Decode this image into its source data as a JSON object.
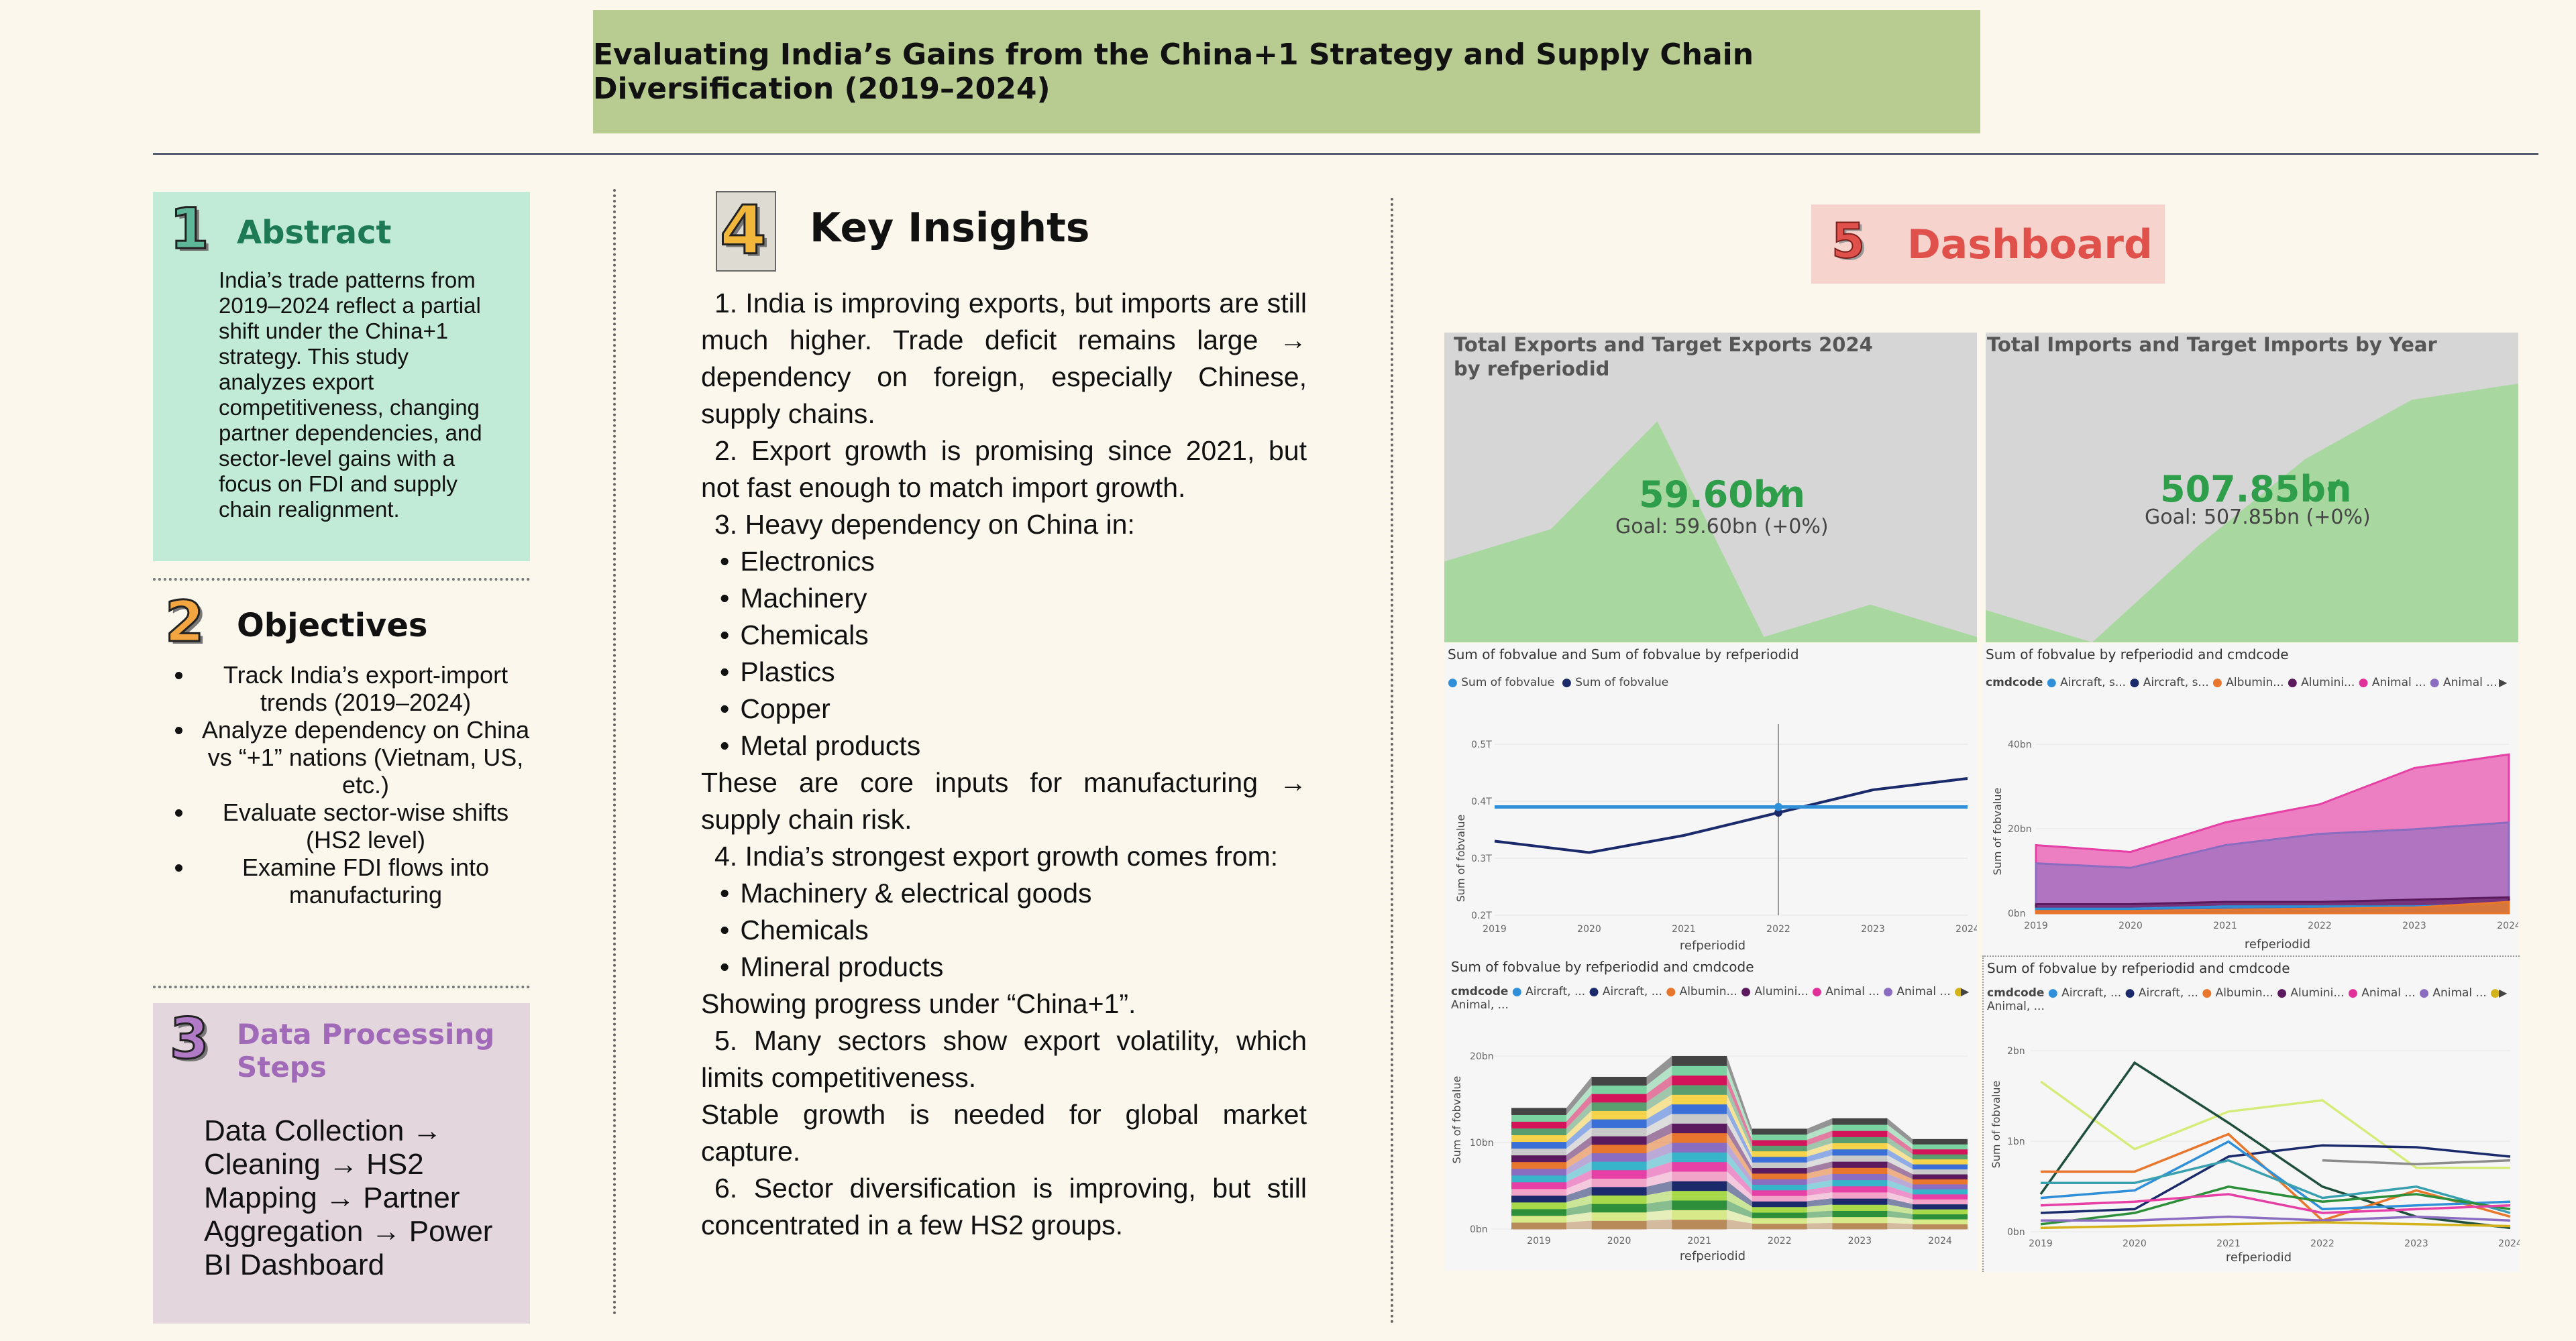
{
  "title": "Evaluating India’s Gains from the China+1 Strategy and Supply Chain Diversification (2019–2024)",
  "abstract": {
    "number": "1",
    "heading": "Abstract",
    "text": "India’s trade patterns from 2019–2024 reflect a partial shift under the China+1 strategy. This study analyzes export competitiveness, changing partner dependencies, and sector-level gains with a focus on FDI and supply chain realignment."
  },
  "objectives": {
    "number": "2",
    "heading": "Objectives",
    "items": [
      "Track India’s export-import trends (2019–2024)",
      "Analyze dependency on China vs “+1” nations (Vietnam, US, etc.)",
      "Evaluate sector-wise shifts (HS2 level)",
      "Examine FDI flows into manufacturing"
    ]
  },
  "data_processing": {
    "number": "3",
    "heading": "Data Processing Steps",
    "text": "Data Collection → Cleaning → HS2 Mapping → Partner Aggregation → Power BI Dashboard"
  },
  "insights": {
    "number": "4",
    "heading": "Key Insights",
    "lines": [
      {
        "type": "para",
        "text": "1. India is improving exports, but imports are still much higher.  Trade deficit remains large → dependency on foreign, especially Chinese, supply chains."
      },
      {
        "type": "para",
        "text": "2. Export growth is promising since 2021, but not fast enough to match import growth."
      },
      {
        "type": "para",
        "text": "3. Heavy dependency on China in:"
      },
      {
        "type": "bullet",
        "text": "Electronics"
      },
      {
        "type": "bullet",
        "text": "Machinery"
      },
      {
        "type": "bullet",
        "text": "Chemicals"
      },
      {
        "type": "bullet",
        "text": "Plastics"
      },
      {
        "type": "bullet",
        "text": "Copper"
      },
      {
        "type": "bullet",
        "text": "Metal products"
      },
      {
        "type": "plain",
        "text": "These are core inputs for manufacturing → supply chain risk."
      },
      {
        "type": "para",
        "text": "4. India’s strongest export growth comes from:"
      },
      {
        "type": "bullet",
        "text": "Machinery & electrical goods"
      },
      {
        "type": "bullet",
        "text": "Chemicals"
      },
      {
        "type": "bullet",
        "text": "Mineral products"
      },
      {
        "type": "plain",
        "text": "Showing progress under “China+1”."
      },
      {
        "type": "para",
        "text": "5. Many sectors show export volatility, which limits competitiveness."
      },
      {
        "type": "plain",
        "text": "Stable growth is needed for global market capture."
      },
      {
        "type": "para",
        "text": "6. Sector diversification is improving, but still concentrated in a few HS2 groups."
      }
    ]
  },
  "dashboard": {
    "number": "5",
    "heading": "Dashboard",
    "colors": {
      "accent": "#e0514c",
      "kpi_green": "#2e9e4a",
      "area_green": "#a8d8a0"
    },
    "kpi_exports": {
      "title": "Total Exports and Target Exports 2024 by refperiodid",
      "value": "59.60bn",
      "goal": "Goal: 59.60bn (+0%)"
    },
    "kpi_imports": {
      "title": "Total Imports and Target Imports by Year",
      "value": "507.85bn",
      "goal": "Goal: 507.85bn (+0%)"
    },
    "line_chart": {
      "title": "Sum of fobvalue and Sum of fobvalue by refperiodid",
      "legend": [
        "Sum of fobvalue",
        "Sum of fobvalue"
      ],
      "xlabel": "refperiodid",
      "ylabel": "Sum of fobvalue",
      "yticks": [
        "0.2T",
        "0.3T",
        "0.4T",
        "0.5T"
      ]
    },
    "area_chart": {
      "title": "Sum of fobvalue by refperiodid and cmdcode",
      "legend_label": "cmdcode",
      "legend": [
        "Aircraft, s...",
        "Aircraft, s...",
        "Albumin...",
        "Alumini...",
        "Animal ...",
        "Animal ..."
      ],
      "xlabel": "refperiodid",
      "ylabel": "Sum of fobvalue",
      "yticks": [
        "0bn",
        "20bn",
        "40bn"
      ]
    },
    "ribbon_chart": {
      "title": "Sum of fobvalue by refperiodid and cmdcode",
      "legend_label": "cmdcode",
      "legend": [
        "Aircraft, ...",
        "Aircraft, ...",
        "Albumin...",
        "Alumini...",
        "Animal ...",
        "Animal ...",
        "Animal, ..."
      ],
      "xlabel": "refperiodid",
      "ylabel": "Sum of fobvalue",
      "yticks": [
        "0bn",
        "10bn",
        "20bn"
      ]
    },
    "multiline_chart": {
      "title": "Sum of fobvalue by refperiodid and cmdcode",
      "legend_label": "cmdcode",
      "legend": [
        "Aircraft, ...",
        "Aircraft, ...",
        "Albumin...",
        "Alumini...",
        "Animal ...",
        "Animal ...",
        "Animal, ..."
      ],
      "xlabel": "refperiodid",
      "ylabel": "Sum of fobvalue",
      "yticks": [
        "0bn",
        "1bn",
        "2bn"
      ]
    },
    "years": [
      "2019",
      "2020",
      "2021",
      "2022",
      "2023",
      "2024"
    ]
  },
  "chart_data": [
    {
      "type": "area",
      "title": "Total Exports and Target Exports 2024 by refperiodid",
      "x": [
        "2019",
        "2020",
        "2021",
        "2022",
        "2023",
        "2024"
      ],
      "values": [
        0.3,
        0.42,
        0.82,
        0.02,
        0.14,
        0.02
      ]
    },
    {
      "type": "area",
      "title": "Total Imports and Target Imports by Year",
      "x": [
        "2019",
        "2020",
        "2021",
        "2022",
        "2023",
        "2024"
      ],
      "values": [
        0.12,
        0.0,
        0.36,
        0.68,
        0.9,
        0.96
      ]
    },
    {
      "type": "line",
      "title": "Sum of fobvalue and Sum of fobvalue by refperiodid",
      "xlabel": "refperiodid",
      "ylabel": "Sum of fobvalue",
      "x": [
        "2019",
        "2020",
        "2021",
        "2022",
        "2023",
        "2024"
      ],
      "ylim": [
        0.2,
        0.5
      ],
      "series": [
        {
          "values": [
            0.33,
            0.31,
            0.34,
            0.38,
            0.42,
            0.44
          ]
        },
        {
          "values": [
            0.39,
            0.39,
            0.39,
            0.39,
            0.39,
            0.39
          ]
        }
      ]
    }
  ]
}
